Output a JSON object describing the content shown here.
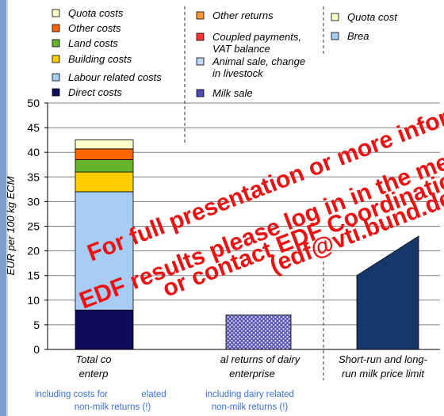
{
  "chart_data": {
    "type": "bar",
    "stacked": true,
    "ylabel": "EUR per 100 kg ECM",
    "ylim": [
      0,
      50
    ],
    "yticks": [
      0,
      5,
      10,
      15,
      20,
      25,
      30,
      35,
      40,
      45,
      50
    ],
    "categories": [
      "Total costs of dairy enterprise",
      "Total returns of dairy enterprise",
      "Short-run and long-run milk price limit"
    ],
    "category_notes": [
      "including costs for non-milk related non-milk returns (!)",
      "including dairy related non-milk returns (!)",
      ""
    ],
    "cost_stack": [
      {
        "name": "Direct costs",
        "color": "#0d0d5c",
        "value": 8
      },
      {
        "name": "Labour related costs",
        "color": "#a8cdf5",
        "value": 24
      },
      {
        "name": "Building costs",
        "color": "#ffcc00",
        "value": 4
      },
      {
        "name": "Land costs",
        "color": "#66b32e",
        "value": 2.5
      },
      {
        "name": "Other costs",
        "color": "#ff6600",
        "value": 2.2
      },
      {
        "name": "Quota costs",
        "color": "#ffffcc",
        "value": 1.8
      }
    ],
    "returns_stack": [
      {
        "name": "Milk sale",
        "color": "#4d4db3",
        "value": 7
      }
    ],
    "price_limit": {
      "short_run": 15,
      "long_run": 23
    }
  },
  "legend": {
    "col1": [
      {
        "label": "Quota costs",
        "color": "#ffffcc"
      },
      {
        "label": "Other costs",
        "color": "#ff6600"
      },
      {
        "label": "Land costs",
        "color": "#66b32e"
      },
      {
        "label": "Building costs",
        "color": "#ffcc00"
      },
      {
        "label": "Labour related costs",
        "color": "#a8cdf5"
      },
      {
        "label": "Direct costs",
        "color": "#0d0d5c"
      }
    ],
    "col2": [
      {
        "label": "Other returns",
        "color": "#ff9933"
      },
      {
        "label": "Coupled payments,",
        "label2": "VAT balance",
        "color": "#ff3333"
      },
      {
        "label": "Animal sale, change",
        "label2": "in livestock",
        "color": "#bfd9f7"
      },
      {
        "label": "Milk sale",
        "color": "#4d4db3"
      }
    ],
    "col3": [
      {
        "label": "Quota cost",
        "color": "#ffffcc"
      },
      {
        "label": "Brea",
        "color": "#a8cdf5"
      }
    ]
  },
  "xlabels": {
    "cat1_line1": "Total co",
    "cat1_line2": "enterp",
    "cat2_line1": "al returns of dairy",
    "cat2_line2": "enterprise",
    "cat3_line1": "Short-run and long-",
    "cat3_line2": "run milk price limit"
  },
  "notes": {
    "note1_line1": "including costs for",
    "note1_line1b": "elated",
    "note1_line2": "non-milk returns (!)",
    "note2_line1": "including dairy related",
    "note2_line2": "non-milk returns (!)"
  },
  "watermark": {
    "line1": "For full presentation or more inform",
    "line2": "EDF results please log in in the mem",
    "line3": "or contact EDF Coordinatio",
    "line4": "(edf@vti.bund.de",
    "color": "#ee1111"
  }
}
